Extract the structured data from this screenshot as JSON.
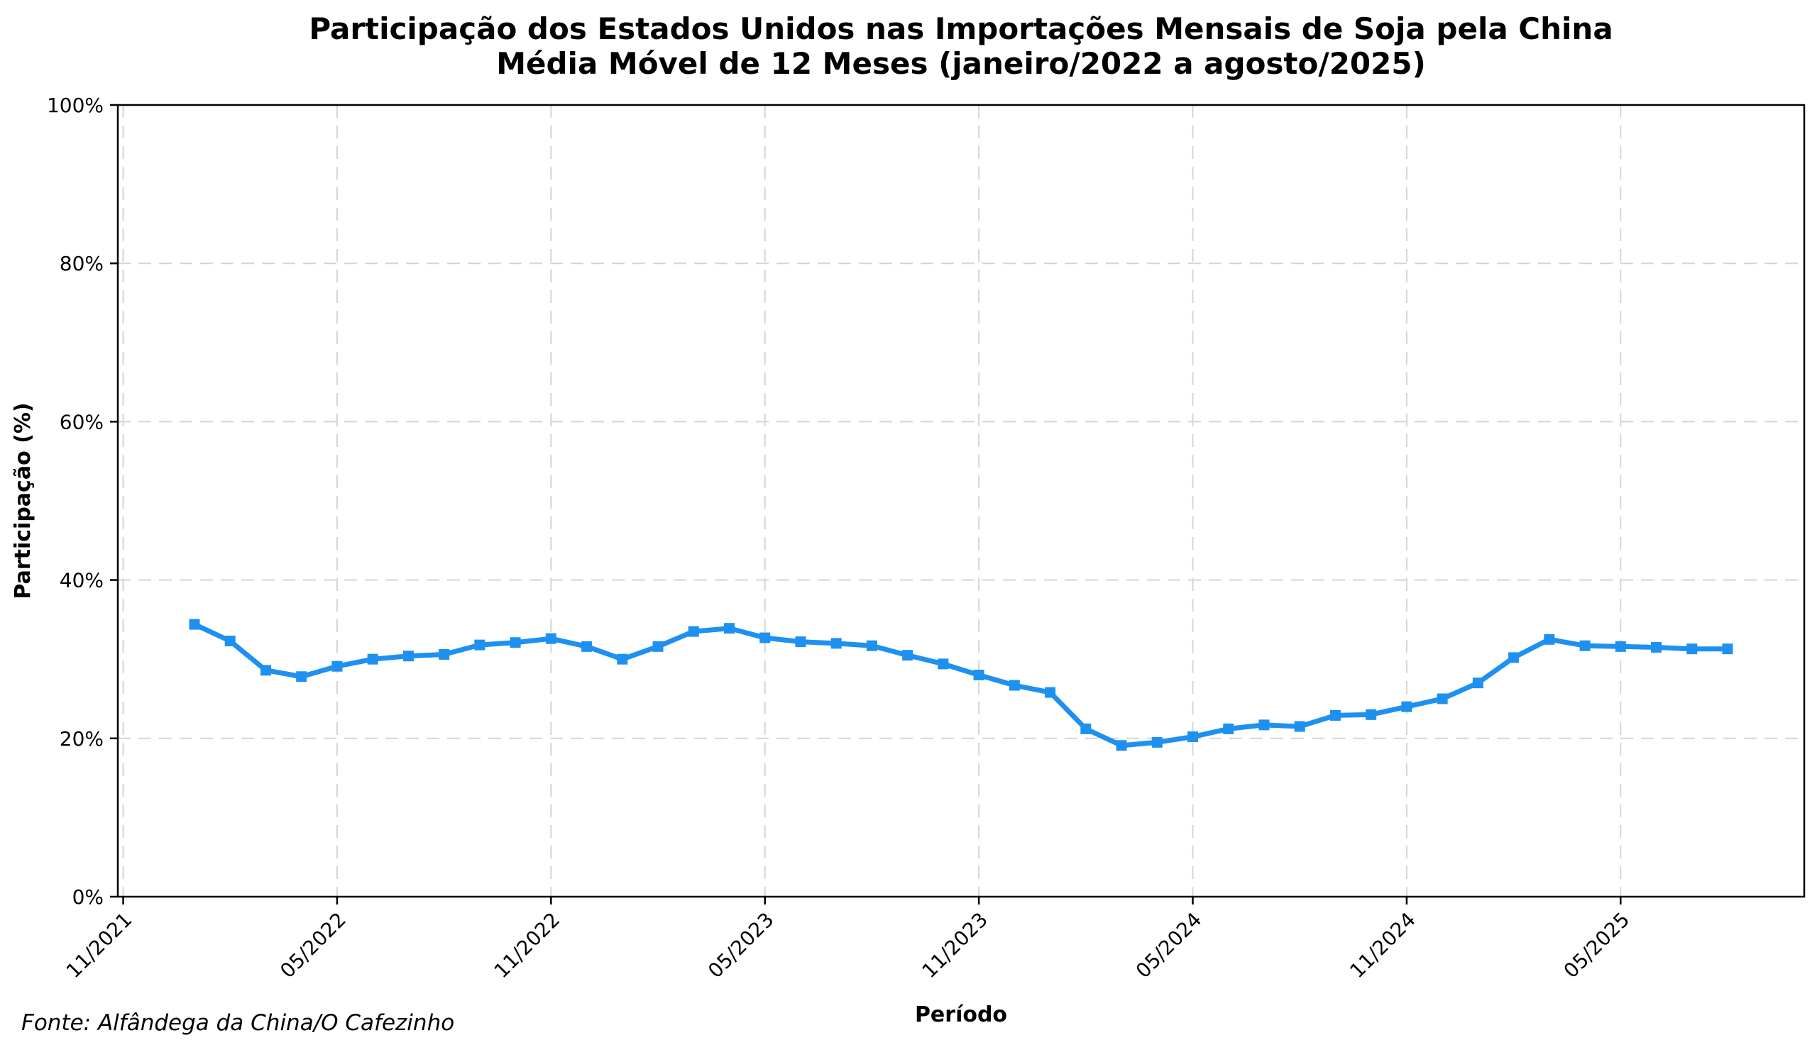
{
  "figure": {
    "title_line1": "Participação dos Estados Unidos nas Importações Mensais de Soja pela China",
    "title_line2": "Média Móvel de 12 Meses (janeiro/2022 a agosto/2025)",
    "source_note": "Fonte: Alfândega da China/O Cafezinho"
  },
  "chart_data": {
    "type": "line",
    "title": "Participação dos Estados Unidos nas Importações Mensais de Soja pela China — Média Móvel de 12 Meses (janeiro/2022 a agosto/2025)",
    "xlabel": "Período",
    "ylabel": "Participação (%)",
    "x": [
      "01/2022",
      "02/2022",
      "03/2022",
      "04/2022",
      "05/2022",
      "06/2022",
      "07/2022",
      "08/2022",
      "09/2022",
      "10/2022",
      "11/2022",
      "12/2022",
      "01/2023",
      "02/2023",
      "03/2023",
      "04/2023",
      "05/2023",
      "06/2023",
      "07/2023",
      "08/2023",
      "09/2023",
      "10/2023",
      "11/2023",
      "12/2023",
      "01/2024",
      "02/2024",
      "03/2024",
      "04/2024",
      "05/2024",
      "06/2024",
      "07/2024",
      "08/2024",
      "09/2024",
      "10/2024",
      "11/2024",
      "12/2024",
      "01/2025",
      "02/2025",
      "03/2025",
      "04/2025",
      "05/2025",
      "06/2025",
      "07/2025",
      "08/2025"
    ],
    "values": [
      34.4,
      32.3,
      28.6,
      27.8,
      29.1,
      30.0,
      30.4,
      30.6,
      31.8,
      32.1,
      32.6,
      31.6,
      30.0,
      31.6,
      33.5,
      33.9,
      32.7,
      32.2,
      32.0,
      31.7,
      30.5,
      29.4,
      28.0,
      26.7,
      25.8,
      21.2,
      19.1,
      19.5,
      20.2,
      21.2,
      21.7,
      21.5,
      22.9,
      23.0,
      24.0,
      25.0,
      27.0,
      30.2,
      32.5,
      31.7,
      31.6,
      31.5,
      31.3,
      31.3
    ],
    "ylim": [
      0,
      100
    ],
    "yticks": [
      {
        "label": "0%",
        "value": 0
      },
      {
        "label": "20%",
        "value": 20
      },
      {
        "label": "40%",
        "value": 40
      },
      {
        "label": "60%",
        "value": 60
      },
      {
        "label": "80%",
        "value": 80
      },
      {
        "label": "100%",
        "value": 100
      }
    ],
    "xticks": [
      {
        "label": "11/2021",
        "month_index": -2
      },
      {
        "label": "05/2022",
        "month_index": 4
      },
      {
        "label": "11/2022",
        "month_index": 10
      },
      {
        "label": "05/2023",
        "month_index": 16
      },
      {
        "label": "11/2023",
        "month_index": 22
      },
      {
        "label": "05/2024",
        "month_index": 28
      },
      {
        "label": "11/2024",
        "month_index": 34
      },
      {
        "label": "05/2025",
        "month_index": 40
      }
    ],
    "xlim_month_index": [
      -2.15,
      45.15
    ],
    "grid": true,
    "legend": false,
    "line_color": "#1E91F0",
    "marker": "square",
    "grid_color": "#d5d5d5",
    "spine_color": "#000000"
  }
}
